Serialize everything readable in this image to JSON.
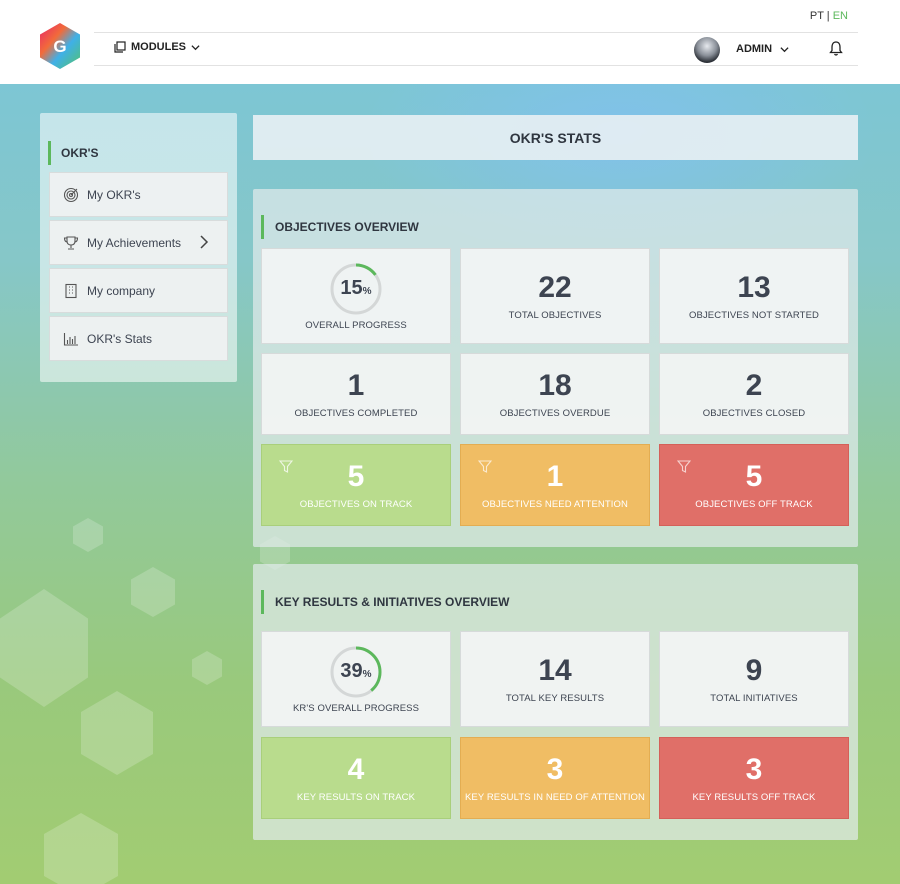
{
  "header": {
    "lang_pt": "PT",
    "lang_sep": "|",
    "lang_en": "EN",
    "logo_letter": "G",
    "modules_label": "MODULES",
    "user_label": "ADMIN"
  },
  "sidebar": {
    "heading": "OKR'S",
    "items": [
      {
        "label": "My OKR's",
        "icon": "target-icon"
      },
      {
        "label": "My Achievements",
        "icon": "trophy-icon"
      },
      {
        "label": "My company",
        "icon": "building-icon"
      },
      {
        "label": "OKR's Stats",
        "icon": "bar-chart-icon"
      }
    ]
  },
  "page_title": "OKR'S STATS",
  "objectives": {
    "title": "OBJECTIVES OVERVIEW",
    "progress_value": "15",
    "progress_unit": "%",
    "progress": 0.15,
    "progress_label": "OVERALL PROGRESS",
    "total_value": "22",
    "total_label": "TOTAL OBJECTIVES",
    "not_started_value": "13",
    "not_started_label": "OBJECTIVES NOT STARTED",
    "completed_value": "1",
    "completed_label": "OBJECTIVES COMPLETED",
    "overdue_value": "18",
    "overdue_label": "OBJECTIVES OVERDUE",
    "closed_value": "2",
    "closed_label": "OBJECTIVES CLOSED",
    "on_track_value": "5",
    "on_track_label": "OBJECTIVES ON TRACK",
    "attention_value": "1",
    "attention_label": "OBJECTIVES NEED ATTENTION",
    "off_track_value": "5",
    "off_track_label": "OBJECTIVES OFF TRACK"
  },
  "key_results": {
    "title": "KEY RESULTS & INITIATIVES OVERVIEW",
    "progress_value": "39",
    "progress_unit": "%",
    "progress": 0.39,
    "progress_label": "KR'S OVERALL PROGRESS",
    "total_kr_value": "14",
    "total_kr_label": "TOTAL KEY RESULTS",
    "total_init_value": "9",
    "total_init_label": "TOTAL INITIATIVES",
    "on_track_value": "4",
    "on_track_label": "KEY RESULTS ON TRACK",
    "attention_value": "3",
    "attention_label": "KEY RESULTS IN NEED OF ATTENTION",
    "off_track_value": "3",
    "off_track_label": "KEY RESULTS OFF TRACK"
  },
  "colors": {
    "accent": "#5cb85c",
    "on_track": "#b9dc8d",
    "attention": "#f0bd64",
    "off_track": "#e06f68"
  }
}
